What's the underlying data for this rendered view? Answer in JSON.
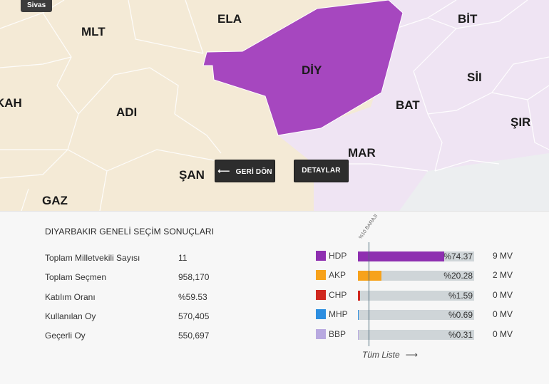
{
  "map": {
    "tag": "Sivas",
    "provinces": {
      "mlt": "MLT",
      "ela": "ELA",
      "bit": "BİT",
      "diy": "DİY",
      "sii": "SİI",
      "kah": "KAH",
      "adi": "ADI",
      "bat": "BAT",
      "sir": "ŞIR",
      "mar": "MAR",
      "san": "ŞAN",
      "gaz": "GAZ"
    },
    "buttons": {
      "back": "GERİ DÖN",
      "details": "DETAYLAR"
    },
    "colors": {
      "selected": "#a647bf",
      "neutral": "#f4ead6",
      "hdp_light": "#efe3f3"
    }
  },
  "results": {
    "title": "DIYARBAKIR GENELİ SEÇİM SONUÇLARI",
    "stats": [
      {
        "label": "Toplam Milletvekili Sayısı",
        "value": "11"
      },
      {
        "label": "Toplam Seçmen",
        "value": "958,170"
      },
      {
        "label": "Katılım Oranı",
        "value": "%59.53"
      },
      {
        "label": "Kullanılan Oy",
        "value": "570,405"
      },
      {
        "label": "Geçerli Oy",
        "value": "550,697"
      }
    ],
    "threshold_label": "%10 BARAJI",
    "parties": [
      {
        "name": "HDP",
        "pct_text": "%74.37",
        "share": 74.37,
        "mv": "9 MV",
        "color": "#8e2fb0"
      },
      {
        "name": "AKP",
        "pct_text": "%20.28",
        "share": 20.28,
        "mv": "2 MV",
        "color": "#f7a21b"
      },
      {
        "name": "CHP",
        "pct_text": "%1.59",
        "share": 1.59,
        "mv": "0 MV",
        "color": "#d0281f"
      },
      {
        "name": "MHP",
        "pct_text": "%0.69",
        "share": 0.69,
        "mv": "0 MV",
        "color": "#2d8ee0"
      },
      {
        "name": "BBP",
        "pct_text": "%0.31",
        "share": 0.31,
        "mv": "0 MV",
        "color": "#b8a9e0"
      }
    ],
    "all_list": "Tüm Liste"
  }
}
